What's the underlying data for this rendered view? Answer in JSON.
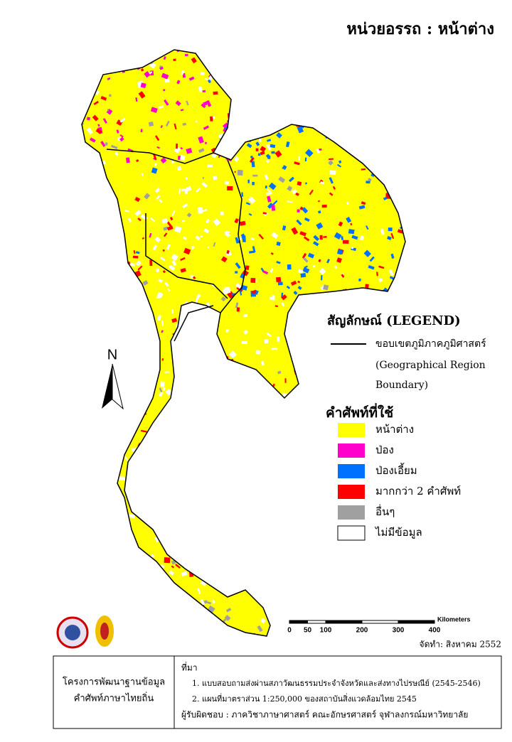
{
  "header": {
    "title": "หน่วยอรรถ : หน้าต่าง"
  },
  "legend": {
    "title": "สัญลักษณ์ (LEGEND)",
    "boundary": [
      "ขอบเขตภูมิภาคภูมิศาสตร์",
      "(Geographical Region",
      "Boundary)"
    ],
    "terms_title": "คำศัพท์ที่ใช้",
    "items": [
      {
        "label": "หน้าต่าง",
        "color": "#ffff00"
      },
      {
        "label": "ป่อง",
        "color": "#ff00cc"
      },
      {
        "label": "ป่องเอี้ยม",
        "color": "#0070ff"
      },
      {
        "label": "มากกว่า 2 คำศัพท์",
        "color": "#ff0000"
      },
      {
        "label": "อื่นๆ",
        "color": "#a0a0a0"
      },
      {
        "label": "ไม่มีข้อมูล",
        "color": "#ffffff"
      }
    ]
  },
  "north": "N",
  "scale": {
    "unit": "Kilometers",
    "ticks": [
      0,
      50,
      100,
      200,
      300,
      400
    ]
  },
  "date": "จัดทำ: สิงหาคม 2552",
  "footer": {
    "project": [
      "โครงการพัฒนาฐานข้อมูล",
      "คำศัพท์ภาษาไทยถิ่น"
    ],
    "source_title": "ที่มา",
    "sources": [
      "1. แบบสอบถามส่งผ่านสภาวัฒนธรรมประจำจังหวัดและส่งทางไปรษณีย์ (2545-2546)",
      "2. แผนที่มาตราส่วน 1:250,000 ของสถาบันสิ่งแวดล้อมไทย 2545"
    ],
    "responsible": "ผู้รับผิดชอบ : ภาควิชาภาษาศาสตร์ คณะอักษรศาสตร์ จุฬาลงกรณ์มหาวิทยาลัย"
  }
}
